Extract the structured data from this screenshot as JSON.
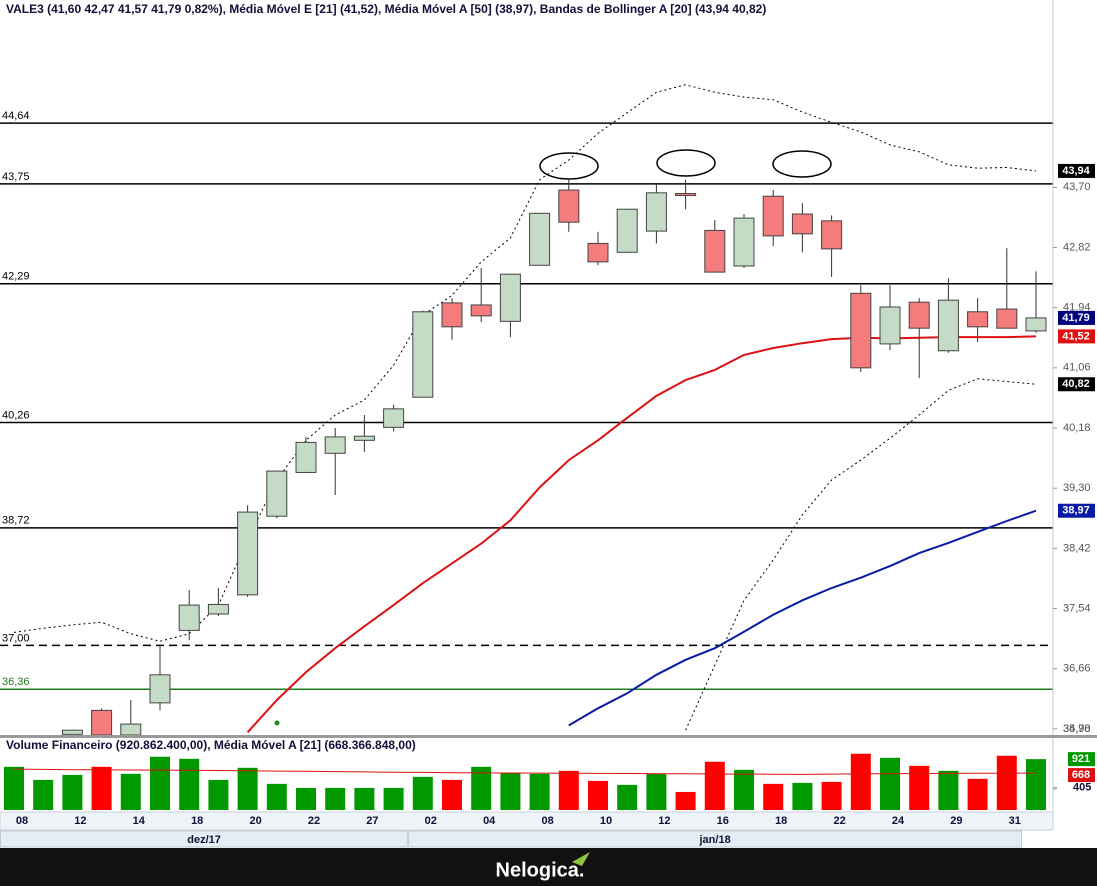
{
  "chart_data": {
    "type": "candlestick",
    "title": "VALE3 (41,60  42,47  41,57  41,79  0,82%), Média Móvel E [21] (41,52), Média Móvel A [50] (38,97), Bandas de Bollinger A [20] (43,94  40,82)",
    "categories": [
      "08",
      null,
      "12",
      null,
      "14",
      null,
      "18",
      null,
      "20",
      null,
      "22",
      null,
      "27",
      null,
      "02",
      null,
      "04",
      null,
      "08",
      null,
      "10",
      null,
      "12",
      null,
      "16",
      null,
      "18",
      null,
      "22",
      null,
      "24",
      null,
      "29",
      null,
      "31",
      null
    ],
    "months": [
      {
        "label": "dez/17",
        "first": 0
      },
      {
        "label": "jan/18",
        "first": 14
      }
    ],
    "open": [
      null,
      null,
      35.7,
      36.05,
      35.69,
      36.16,
      37.22,
      37.46,
      37.74,
      38.89,
      39.53,
      39.81,
      40.0,
      40.19,
      40.63,
      42.01,
      41.98,
      41.74,
      42.56,
      43.66,
      42.88,
      42.75,
      43.06,
      43.61,
      43.07,
      42.55,
      43.57,
      43.31,
      43.21,
      42.15,
      41.41,
      42.02,
      41.31,
      41.88,
      41.92,
      41.6
    ],
    "high": [
      null,
      null,
      35.77,
      36.08,
      36.2,
      37.0,
      37.81,
      37.84,
      39.05,
      39.56,
      40.05,
      40.18,
      40.37,
      40.52,
      41.9,
      42.08,
      42.52,
      42.43,
      43.32,
      43.81,
      43.05,
      43.38,
      43.75,
      43.81,
      43.22,
      43.31,
      43.66,
      43.47,
      43.29,
      42.27,
      42.27,
      42.08,
      42.37,
      42.08,
      42.81,
      42.47
    ],
    "low": [
      null,
      null,
      35.7,
      35.65,
      35.6,
      36.05,
      37.08,
      37.43,
      37.71,
      38.86,
      39.53,
      39.2,
      39.83,
      40.13,
      40.63,
      41.47,
      41.73,
      41.51,
      42.56,
      43.05,
      42.56,
      42.75,
      42.88,
      43.38,
      42.46,
      42.52,
      42.84,
      42.75,
      42.39,
      41.0,
      41.32,
      40.91,
      41.28,
      41.44,
      41.64,
      41.57
    ],
    "close": [
      null,
      null,
      35.76,
      35.69,
      35.85,
      36.57,
      37.59,
      37.6,
      38.95,
      39.55,
      39.97,
      40.05,
      40.06,
      40.46,
      41.88,
      41.66,
      41.82,
      42.43,
      43.32,
      43.19,
      42.61,
      43.38,
      43.62,
      43.58,
      42.46,
      43.25,
      42.99,
      43.02,
      42.8,
      41.06,
      41.95,
      41.64,
      42.05,
      41.66,
      41.64,
      41.79
    ],
    "up_color": "#c4dcc6",
    "down_color": "#f47c7c",
    "close_label": "41,79",
    "close_marker_color": "#000080",
    "ylim": [
      35.69,
      46.44
    ],
    "yticks": [
      {
        "value": 43.7,
        "label": "43,70"
      },
      {
        "value": 42.82,
        "label": "42,82"
      },
      {
        "value": 41.94,
        "label": "41,94"
      },
      {
        "value": 41.06,
        "label": "41,06"
      },
      {
        "value": 40.18,
        "label": "40,18"
      },
      {
        "value": 39.3,
        "label": "39,30"
      },
      {
        "value": 38.42,
        "label": "38,42"
      },
      {
        "value": 37.54,
        "label": "37,54"
      },
      {
        "value": 36.66,
        "label": "36,66"
      },
      {
        "value": 35.78,
        "label": "35,78"
      },
      {
        "value": 34.9,
        "label": "34,90"
      }
    ],
    "levels": [
      {
        "value": 44.64,
        "label": "44,64",
        "color": "#000000",
        "dash": false
      },
      {
        "value": 43.75,
        "label": "43,75",
        "color": "#000000",
        "dash": false
      },
      {
        "value": 42.29,
        "label": "42,29",
        "color": "#000000",
        "dash": false
      },
      {
        "value": 40.26,
        "label": "40,26",
        "color": "#000000",
        "dash": false
      },
      {
        "value": 38.72,
        "label": "38,72",
        "color": "#000000",
        "dash": false
      },
      {
        "value": 37.0,
        "label": "37,00",
        "color": "#000000",
        "dash": true
      },
      {
        "value": 36.36,
        "label": "36,36",
        "color": "#1e7b1e",
        "dash": false
      }
    ],
    "overlays": [
      {
        "color": "#dd1111",
        "dash": false,
        "width": 2,
        "marker_color": "#dd1111",
        "last_label": "41,52",
        "values": [
          null,
          null,
          null,
          null,
          null,
          null,
          null,
          null,
          35.73,
          36.2,
          36.61,
          36.96,
          37.28,
          37.59,
          37.91,
          38.2,
          38.49,
          38.83,
          39.31,
          39.71,
          40.0,
          40.33,
          40.65,
          40.88,
          41.03,
          41.25,
          41.35,
          41.42,
          41.48,
          41.5,
          41.49,
          41.5,
          41.51,
          41.51,
          41.51,
          41.52
        ]
      },
      {
        "color": "#0a1aa8",
        "dash": false,
        "width": 2,
        "marker_color": "#0a1aa8",
        "last_label": "38,97",
        "values": [
          null,
          null,
          null,
          null,
          null,
          null,
          null,
          null,
          null,
          null,
          null,
          null,
          null,
          null,
          null,
          null,
          null,
          null,
          null,
          35.83,
          36.08,
          36.3,
          36.57,
          36.79,
          36.96,
          37.2,
          37.45,
          37.66,
          37.84,
          37.99,
          38.16,
          38.35,
          38.5,
          38.66,
          38.82,
          38.97
        ]
      },
      {
        "color": "#000000",
        "dash": true,
        "width": 1,
        "marker_color": "#000000",
        "last_label": "43,94",
        "values": [
          37.19,
          37.25,
          37.3,
          37.34,
          37.17,
          37.06,
          37.17,
          37.59,
          38.54,
          39.42,
          40.0,
          40.37,
          40.59,
          41.1,
          41.83,
          42.12,
          42.61,
          42.96,
          43.81,
          44.1,
          44.49,
          44.79,
          45.09,
          45.2,
          45.09,
          45.02,
          44.98,
          44.8,
          44.65,
          44.51,
          44.32,
          44.22,
          44.03,
          43.98,
          43.99,
          43.94
        ]
      },
      {
        "color": "#000000",
        "dash": true,
        "width": 1,
        "marker_color": "#000000",
        "last_label": "40,82",
        "values": [
          null,
          null,
          null,
          null,
          null,
          null,
          null,
          null,
          null,
          null,
          null,
          null,
          null,
          null,
          null,
          null,
          null,
          null,
          null,
          null,
          null,
          null,
          null,
          35.76,
          36.71,
          37.66,
          38.25,
          38.91,
          39.42,
          39.71,
          40.03,
          40.37,
          40.73,
          40.9,
          40.86,
          40.82
        ]
      }
    ],
    "volume": {
      "title": "Volume Financeiro (920.862.400,00), Média Móvel A [21] (668.366.848,00)",
      "ylim": [
        0,
        1050
      ],
      "yticks": [
        405
      ],
      "values": [
        782,
        545,
        636,
        782,
        655,
        964,
        927,
        545,
        764,
        473,
        400,
        400,
        400,
        400,
        600,
        545,
        782,
        673,
        655,
        709,
        527,
        455,
        655,
        327,
        873,
        727,
        473,
        491,
        509,
        1018,
        945,
        800,
        709,
        564,
        982,
        920.8624
      ],
      "colors": [
        "#009900",
        "#009900",
        "#009900",
        "#ff0000",
        "#009900",
        "#009900",
        "#009900",
        "#009900",
        "#009900",
        "#009900",
        "#009900",
        "#009900",
        "#009900",
        "#009900",
        "#009900",
        "#ff0000",
        "#009900",
        "#009900",
        "#009900",
        "#ff0000",
        "#ff0000",
        "#009900",
        "#009900",
        "#ff0000",
        "#ff0000",
        "#009900",
        "#ff0000",
        "#009900",
        "#ff0000",
        "#ff0000",
        "#009900",
        "#ff0000",
        "#009900",
        "#ff0000",
        "#ff0000",
        "#009900"
      ],
      "last_label": "921",
      "last_color": "#009900",
      "ma": {
        "color": "#dd1111",
        "last_label": "668",
        "values": [
          740,
          735,
          730,
          728,
          725,
          722,
          720,
          715,
          710,
          705,
          700,
          695,
          690,
          685,
          680,
          675,
          672,
          670,
          668,
          665,
          662,
          660,
          658,
          655,
          652,
          650,
          648,
          645,
          650,
          655,
          658,
          660,
          662,
          664,
          666,
          668.366848
        ]
      }
    }
  },
  "footer": {
    "brand": "Nelogica."
  }
}
